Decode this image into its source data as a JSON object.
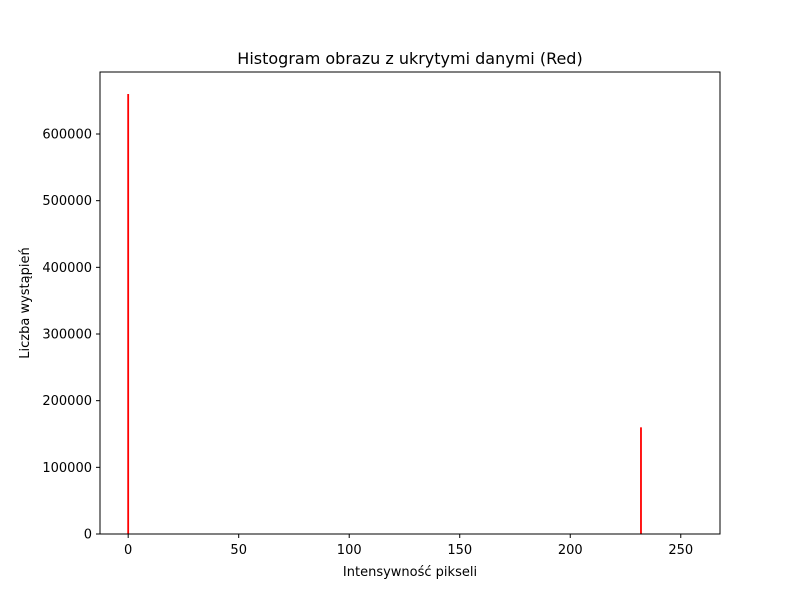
{
  "chart_data": {
    "type": "bar",
    "title": "Histogram obrazu z ukrytymi danymi (Red)",
    "xlabel": "Intensywność pikseli",
    "ylabel": "Liczba wystąpień",
    "xlim": [
      -12.75,
      267.75
    ],
    "ylim": [
      0,
      693000
    ],
    "xticks": [
      0,
      50,
      100,
      150,
      200,
      250
    ],
    "yticks": [
      0,
      100000,
      200000,
      300000,
      400000,
      500000,
      600000
    ],
    "bar_color": "#ff0000",
    "grid": false,
    "legend": false,
    "x": [
      0,
      232
    ],
    "values": [
      660000,
      160000
    ]
  }
}
